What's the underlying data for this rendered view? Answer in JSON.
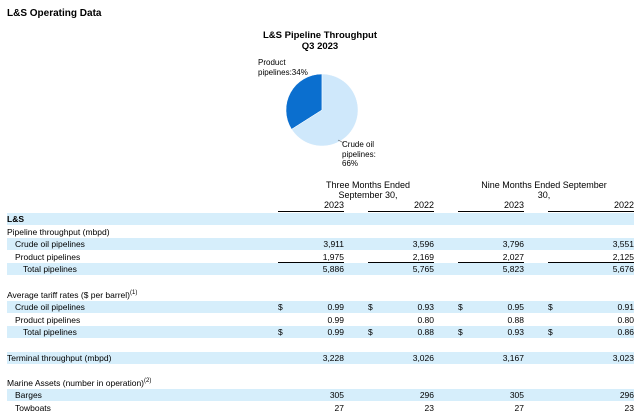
{
  "header": {
    "title": "L&S Operating Data"
  },
  "chart_data": {
    "type": "pie",
    "title": "L&S Pipeline Throughput",
    "subtitle": "Q3 2023",
    "slices": [
      {
        "label": "Product pipelines",
        "value": 34,
        "text": "Product pipelines:34%",
        "color": "#0b6fcf"
      },
      {
        "label": "Crude oil pipelines",
        "value": 66,
        "text": "Crude oil pipelines: 66%",
        "color": "#cfe8fb"
      }
    ]
  },
  "table": {
    "period_headers": [
      "Three Months Ended September 30,",
      "Nine Months Ended September 30,"
    ],
    "years": [
      "2023",
      "2022",
      "2023",
      "2022"
    ],
    "rows": [
      {
        "label": "L&S",
        "kind": "section",
        "shade": true
      },
      {
        "label": "Pipeline throughput (mbpd)",
        "kind": "plain",
        "shade": false
      },
      {
        "label": "Crude oil pipelines",
        "kind": "value",
        "indent": 1,
        "shade": true,
        "values": [
          "3,911",
          "3,596",
          "3,796",
          "3,551"
        ],
        "cur": [
          "",
          "",
          "",
          ""
        ]
      },
      {
        "label": "Product pipelines",
        "kind": "value",
        "indent": 1,
        "shade": false,
        "underline": true,
        "values": [
          "1,975",
          "2,169",
          "2,027",
          "2,125"
        ],
        "cur": [
          "",
          "",
          "",
          ""
        ]
      },
      {
        "label": "Total pipelines",
        "kind": "value",
        "indent": 2,
        "shade": true,
        "values": [
          "5,886",
          "5,765",
          "5,823",
          "5,676"
        ],
        "cur": [
          "",
          "",
          "",
          ""
        ]
      },
      {
        "label": "",
        "kind": "blank",
        "shade": false
      },
      {
        "label": "Average tariff rates ($ per barrel)",
        "sup": "(1)",
        "kind": "plain",
        "shade": false
      },
      {
        "label": "Crude oil pipelines",
        "kind": "value",
        "indent": 1,
        "shade": true,
        "values": [
          "0.99",
          "0.93",
          "0.95",
          "0.91"
        ],
        "cur": [
          "$",
          "$",
          "$",
          "$"
        ]
      },
      {
        "label": "Product pipelines",
        "kind": "value",
        "indent": 1,
        "shade": false,
        "values": [
          "0.99",
          "0.80",
          "0.88",
          "0.80"
        ],
        "cur": [
          "",
          "",
          "",
          ""
        ]
      },
      {
        "label": "Total pipelines",
        "kind": "value",
        "indent": 2,
        "shade": true,
        "values": [
          "0.99",
          "0.88",
          "0.93",
          "0.86"
        ],
        "cur": [
          "$",
          "$",
          "$",
          "$"
        ]
      },
      {
        "label": "",
        "kind": "blank",
        "shade": false
      },
      {
        "label": "Terminal throughput (mbpd)",
        "kind": "value",
        "indent": 0,
        "shade": true,
        "values": [
          "3,228",
          "3,026",
          "3,167",
          "3,023"
        ],
        "cur": [
          "",
          "",
          "",
          ""
        ]
      },
      {
        "label": "",
        "kind": "blank",
        "shade": false
      },
      {
        "label": "Marine Assets (number in operation)",
        "sup": "(2)",
        "kind": "plain",
        "shade": false
      },
      {
        "label": "Barges",
        "kind": "value",
        "indent": 1,
        "shade": true,
        "values": [
          "305",
          "296",
          "305",
          "296"
        ],
        "cur": [
          "",
          "",
          "",
          ""
        ]
      },
      {
        "label": "Towboats",
        "kind": "value",
        "indent": 1,
        "shade": false,
        "values": [
          "27",
          "23",
          "27",
          "23"
        ],
        "cur": [
          "",
          "",
          "",
          ""
        ]
      }
    ]
  }
}
